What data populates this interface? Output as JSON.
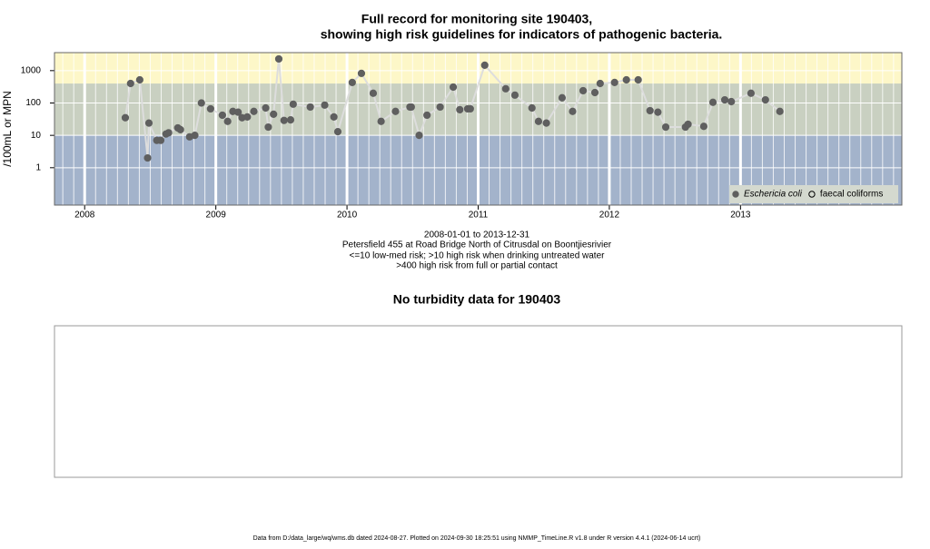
{
  "chart_data": [
    {
      "type": "line",
      "title": [
        "Full record for monitoring site 190403,",
        "showing high risk guidelines for indicators of pathogenic bacteria."
      ],
      "y_label": "/100mL or MPN",
      "notes": [
        "2008-01-01 to 2013-12-31",
        "Petersfield 455 at Road Bridge North of Citrusdal on Boontjiesrivier",
        "<=10 low-med risk; >10 high risk when drinking untreated water",
        ">400 high risk from full or partial contact"
      ],
      "xlim": [
        2007.77,
        2014.23
      ],
      "xticks": [
        2008,
        2009,
        2010,
        2011,
        2012,
        2013
      ],
      "ylim": [
        0.07,
        3600
      ],
      "yticks": [
        1,
        10,
        100,
        1000
      ],
      "log_y": true,
      "grid": true,
      "thresholds": [
        10,
        400
      ],
      "band_colors": [
        "#a3b3cb",
        "#c9d0c1",
        "#fdf7c8"
      ],
      "line_color": "#dddddd",
      "legend": "bottom-right",
      "series": [
        {
          "name": "Eschericia coli",
          "color": "#5f5f5f",
          "marker": "filled",
          "x": [
            2008.31,
            2008.35,
            2008.42,
            2008.48,
            2008.49,
            2008.55,
            2008.58,
            2008.62,
            2008.64,
            2008.71,
            2008.73,
            2008.8,
            2008.84,
            2008.89,
            2008.96,
            2009.05,
            2009.09,
            2009.13,
            2009.17,
            2009.2,
            2009.24,
            2009.29,
            2009.38,
            2009.4,
            2009.44,
            2009.48,
            2009.52,
            2009.57,
            2009.59,
            2009.72,
            2009.83,
            2009.9,
            2009.93,
            2010.04,
            2010.11,
            2010.2,
            2010.26,
            2010.37,
            2010.48,
            2010.49,
            2010.55,
            2010.61,
            2010.71,
            2010.81,
            2010.86,
            2010.92,
            2010.94,
            2011.05,
            2011.21,
            2011.28,
            2011.41,
            2011.46,
            2011.52,
            2011.64,
            2011.72,
            2011.8,
            2011.89,
            2011.93,
            2012.04,
            2012.13,
            2012.22,
            2012.31,
            2012.37,
            2012.43,
            2012.58,
            2012.6,
            2012.72,
            2012.79,
            2012.88,
            2012.93,
            2013.08,
            2013.19,
            2013.3
          ],
          "values": [
            35,
            400,
            520,
            2,
            24,
            7,
            7,
            11,
            12,
            17,
            15,
            9,
            10,
            100,
            66,
            42,
            27,
            55,
            52,
            35,
            37,
            55,
            70,
            18,
            45,
            2300,
            29,
            30,
            92,
            75,
            86,
            37,
            13,
            430,
            820,
            200,
            27,
            55,
            75,
            75,
            10,
            42,
            75,
            310,
            62,
            66,
            66,
            1470,
            275,
            175,
            70,
            27,
            24,
            145,
            55,
            240,
            210,
            400,
            430,
            520,
            520,
            58,
            52,
            18,
            18,
            22,
            19,
            105,
            125,
            110,
            200,
            125,
            55
          ]
        },
        {
          "name": "faecal coliforms",
          "color": "#000000",
          "marker": "open",
          "x": [],
          "values": []
        }
      ]
    },
    {
      "type": "empty",
      "title": "No turbidity data for 190403"
    }
  ],
  "footer": "Data from D:/data_large/wq/wms.db dated 2024-08-27. Plotted on 2024-09-30 18:25:51 using NMMP_TimeLine.R v1.8 under R version 4.4.1 (2024-06-14 ucrt)"
}
